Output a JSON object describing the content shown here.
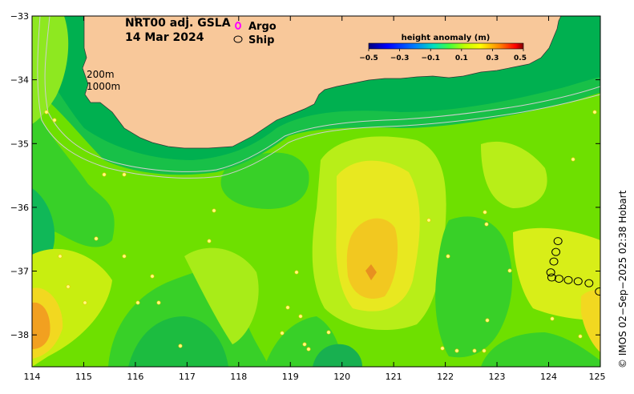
{
  "title": {
    "line1": "NRT00 adj. GSLA",
    "line2": "14 Mar 2024"
  },
  "legend": {
    "argo_label": "Argo",
    "ship_label": "Ship",
    "argo_color": "#ff00ff",
    "ship_color": "#000000"
  },
  "isobaths": {
    "label_200": "200m",
    "label_1000": "1000m"
  },
  "colorbar": {
    "title": "height anomaly (m)",
    "ticks": [
      "−0.5",
      "−0.3",
      "−0.1",
      "0.1",
      "0.3",
      "0.5"
    ],
    "stops": [
      "#00007f",
      "#0000ff",
      "#007fff",
      "#00ffff",
      "#00ff7f",
      "#7fff00",
      "#ffff00",
      "#ff7f00",
      "#ff0000",
      "#7f0000"
    ]
  },
  "axes": {
    "x_ticks": [
      "114",
      "115",
      "116",
      "117",
      "118",
      "119",
      "120",
      "121",
      "122",
      "123",
      "124",
      "125"
    ],
    "y_ticks": [
      "−33",
      "−34",
      "−35",
      "−36",
      "−37",
      "−38"
    ],
    "lon_range": [
      114,
      125
    ],
    "lat_range": [
      -38.5,
      -33
    ]
  },
  "credit": "© IMOS 02−Sep−2025 02:38 Hobart",
  "colors": {
    "land": "#f8c89a",
    "ocean_base": "#6ee000",
    "shelf": "#00c050"
  },
  "ship_track": [
    {
      "lon": 124.18,
      "lat": -36.53
    },
    {
      "lon": 124.14,
      "lat": -36.7
    },
    {
      "lon": 124.1,
      "lat": -36.85
    },
    {
      "lon": 124.04,
      "lat": -37.02
    },
    {
      "lon": 124.06,
      "lat": -37.1
    },
    {
      "lon": 124.2,
      "lat": -37.12
    },
    {
      "lon": 124.38,
      "lat": -37.14
    },
    {
      "lon": 124.57,
      "lat": -37.16
    },
    {
      "lon": 124.78,
      "lat": -37.19
    },
    {
      "lon": 124.98,
      "lat": -37.32
    }
  ]
}
